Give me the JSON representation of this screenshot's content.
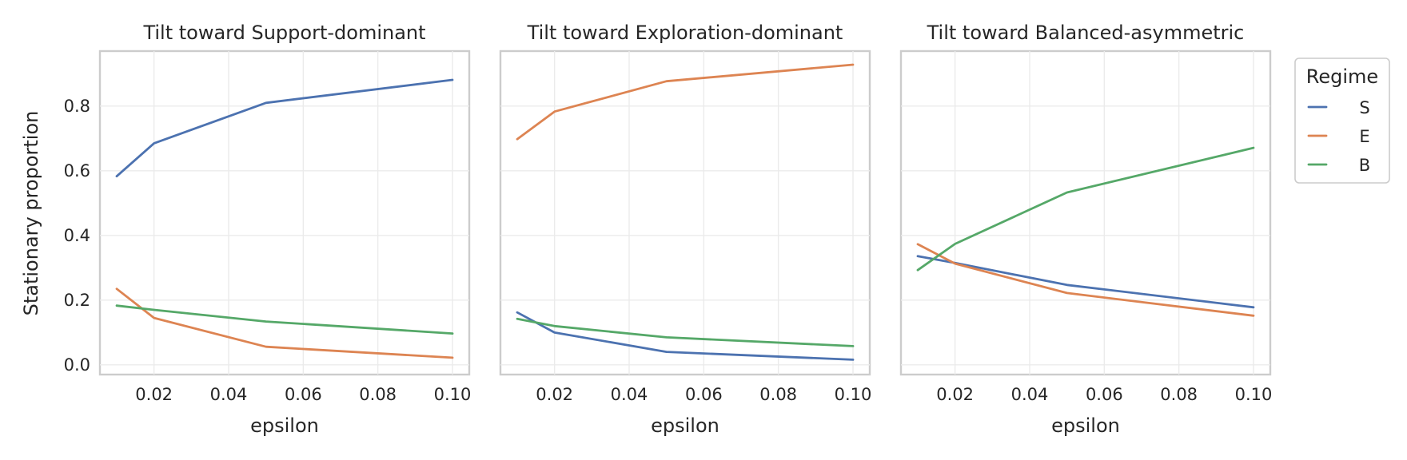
{
  "chart_data": [
    {
      "type": "line",
      "title": "Tilt toward Support-dominant",
      "xlabel": "epsilon",
      "ylabel": "Stationary proportion",
      "x": [
        0.01,
        0.02,
        0.05,
        0.1
      ],
      "xticks": [
        "0.02",
        "0.04",
        "0.06",
        "0.08",
        "0.10"
      ],
      "yticks": [
        "0.0",
        "0.2",
        "0.4",
        "0.6",
        "0.8"
      ],
      "xlim": [
        0.0055,
        0.1045
      ],
      "ylim": [
        -0.03,
        0.97
      ],
      "grid": true,
      "series": [
        {
          "name": "S",
          "values": [
            0.583,
            0.685,
            0.81,
            0.881
          ]
        },
        {
          "name": "E",
          "values": [
            0.235,
            0.145,
            0.056,
            0.022
          ]
        },
        {
          "name": "B",
          "values": [
            0.183,
            0.17,
            0.134,
            0.097
          ]
        }
      ]
    },
    {
      "type": "line",
      "title": "Tilt toward Exploration-dominant",
      "xlabel": "epsilon",
      "ylabel": "",
      "x": [
        0.01,
        0.02,
        0.05,
        0.1
      ],
      "xticks": [
        "0.02",
        "0.04",
        "0.06",
        "0.08",
        "0.10"
      ],
      "yticks": [],
      "xlim": [
        0.0055,
        0.1045
      ],
      "ylim": [
        -0.03,
        0.97
      ],
      "grid": true,
      "series": [
        {
          "name": "S",
          "values": [
            0.162,
            0.1,
            0.04,
            0.016
          ]
        },
        {
          "name": "E",
          "values": [
            0.698,
            0.783,
            0.877,
            0.928
          ]
        },
        {
          "name": "B",
          "values": [
            0.142,
            0.12,
            0.085,
            0.058
          ]
        }
      ]
    },
    {
      "type": "line",
      "title": "Tilt toward Balanced-asymmetric",
      "xlabel": "epsilon",
      "ylabel": "",
      "x": [
        0.01,
        0.02,
        0.05,
        0.1
      ],
      "xticks": [
        "0.02",
        "0.04",
        "0.06",
        "0.08",
        "0.10"
      ],
      "yticks": [],
      "xlim": [
        0.0055,
        0.1045
      ],
      "ylim": [
        -0.03,
        0.97
      ],
      "grid": true,
      "series": [
        {
          "name": "S",
          "values": [
            0.336,
            0.315,
            0.247,
            0.178
          ]
        },
        {
          "name": "E",
          "values": [
            0.373,
            0.313,
            0.222,
            0.152
          ]
        },
        {
          "name": "B",
          "values": [
            0.293,
            0.374,
            0.533,
            0.671
          ]
        }
      ]
    }
  ],
  "legend": {
    "title": "Regime",
    "placement": "outside-right",
    "entries": [
      {
        "label": "S",
        "color": "#4c72b0"
      },
      {
        "label": "E",
        "color": "#dd8452"
      },
      {
        "label": "B",
        "color": "#55a868"
      }
    ]
  }
}
